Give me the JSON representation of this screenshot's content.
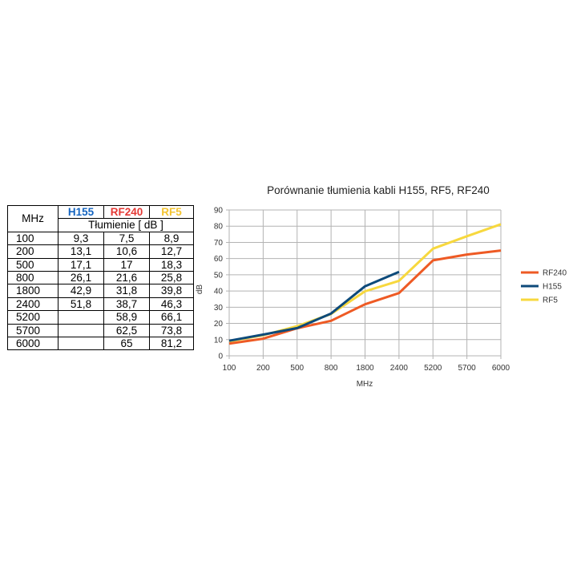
{
  "table": {
    "mhz_header": "MHz",
    "unit_header": "Tłumienie [ dB ]",
    "columns": [
      {
        "name": "H155",
        "color": "#1565c0"
      },
      {
        "name": "RF240",
        "color": "#e53935"
      },
      {
        "name": "RF5",
        "color": "#f4c430"
      }
    ],
    "rows": [
      {
        "mhz": "100",
        "h155": "9,3",
        "rf240": "7,5",
        "rf5": "8,9"
      },
      {
        "mhz": "200",
        "h155": "13,1",
        "rf240": "10,6",
        "rf5": "12,7"
      },
      {
        "mhz": "500",
        "h155": "17,1",
        "rf240": "17",
        "rf5": "18,3"
      },
      {
        "mhz": "800",
        "h155": "26,1",
        "rf240": "21,6",
        "rf5": "25,8"
      },
      {
        "mhz": "1800",
        "h155": "42,9",
        "rf240": "31,8",
        "rf5": "39,8"
      },
      {
        "mhz": "2400",
        "h155": "51,8",
        "rf240": "38,7",
        "rf5": "46,3"
      },
      {
        "mhz": "5200",
        "h155": "",
        "rf240": "58,9",
        "rf5": "66,1"
      },
      {
        "mhz": "5700",
        "h155": "",
        "rf240": "62,5",
        "rf5": "73,8"
      },
      {
        "mhz": "6000",
        "h155": "",
        "rf240": "65",
        "rf5": "81,2"
      }
    ]
  },
  "chart_data": {
    "type": "line",
    "title": "Porównanie tłumienia kabli H155, RF5, RF240",
    "xlabel": "MHz",
    "ylabel": "dB",
    "categories": [
      "100",
      "200",
      "500",
      "800",
      "1800",
      "2400",
      "5200",
      "5700",
      "6000"
    ],
    "ylim": [
      0,
      90
    ],
    "yticks": [
      0,
      10,
      20,
      30,
      40,
      50,
      60,
      70,
      80,
      90
    ],
    "grid": true,
    "legend_position": "right",
    "series": [
      {
        "name": "RF240",
        "color": "#ee5a24",
        "values": [
          7.5,
          10.6,
          17,
          21.6,
          31.8,
          38.7,
          58.9,
          62.5,
          65
        ]
      },
      {
        "name": "H155",
        "color": "#0d4a7a",
        "values": [
          9.3,
          13.1,
          17.1,
          26.1,
          42.9,
          51.8,
          null,
          null,
          null
        ]
      },
      {
        "name": "RF5",
        "color": "#f7d83e",
        "values": [
          8.9,
          12.7,
          18.3,
          25.8,
          39.8,
          46.3,
          66.1,
          73.8,
          81.2
        ]
      }
    ]
  }
}
